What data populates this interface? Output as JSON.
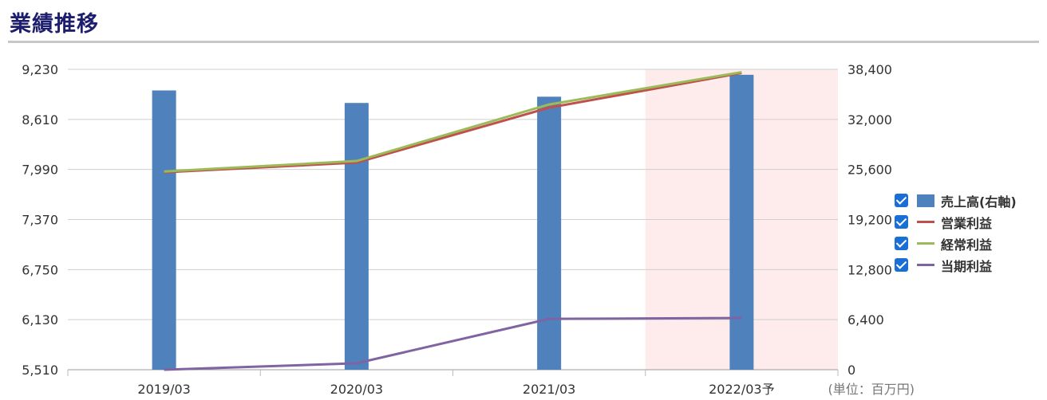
{
  "page": {
    "title": "業績推移"
  },
  "chart_data": {
    "type": "bar",
    "categories": [
      "2019/03",
      "2020/03",
      "2021/03",
      "2022/03予"
    ],
    "forecast_category": "2022/03予",
    "series": [
      {
        "name": "売上高(右軸)",
        "type": "bar",
        "axis": "right",
        "color": "#4f81bd",
        "values": [
          35700,
          34100,
          34900,
          37700
        ]
      },
      {
        "name": "営業利益",
        "type": "line",
        "axis": "left",
        "color": "#c0504d",
        "values": [
          7955,
          8075,
          8755,
          9185
        ]
      },
      {
        "name": "経常利益",
        "type": "line",
        "axis": "left",
        "color": "#9bbb59",
        "values": [
          7965,
          8095,
          8795,
          9195
        ]
      },
      {
        "name": "当期利益",
        "type": "line",
        "axis": "left",
        "color": "#8064a2",
        "values": [
          5510,
          5590,
          6140,
          6150
        ]
      }
    ],
    "left_axis": {
      "ylim": [
        5510,
        9230
      ],
      "ticks": [
        "9,230",
        "8,610",
        "7,990",
        "7,370",
        "6,750",
        "6,130",
        "5,510"
      ]
    },
    "right_axis": {
      "ylim": [
        0,
        38400
      ],
      "ticks": [
        "38,400",
        "32,000",
        "25,600",
        "19,200",
        "12,800",
        "6,400",
        "0"
      ]
    },
    "unit_label": "(単位：百万円)",
    "grid": true,
    "legend_position": "right"
  }
}
